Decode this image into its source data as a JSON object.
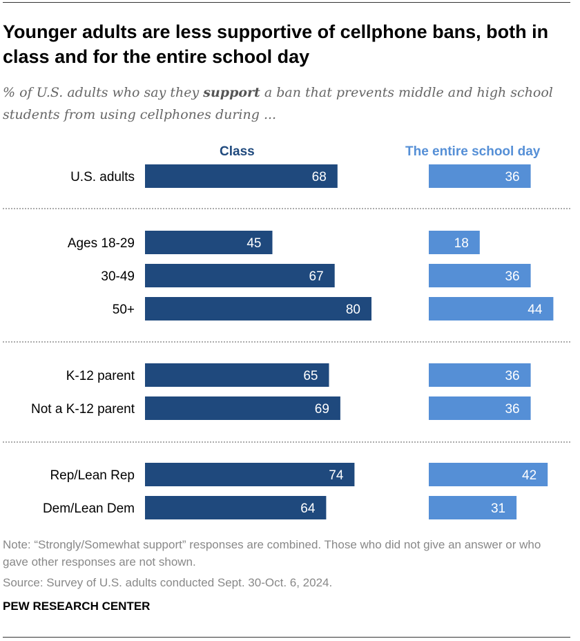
{
  "title": "Younger adults are less supportive of cellphone bans, both in class and for the entire school day",
  "subtitle_pre": "% of U.S. adults who say they ",
  "subtitle_bold": "support",
  "subtitle_post": " a ban that prevents middle and high school students from using cellphones during ...",
  "note": "Note: “Strongly/Somewhat support” responses are combined. Those who did not give an answer or who gave other responses are not shown.",
  "source": "Source: Survey of U.S. adults conducted Sept. 30-Oct. 6, 2024.",
  "brand": "PEW RESEARCH CENTER",
  "chart_data": {
    "type": "bar",
    "orientation": "horizontal",
    "categories": [
      "U.S. adults",
      "Ages 18-29",
      "30-49",
      "50+",
      "K-12 parent",
      "Not a K-12 parent",
      "Rep/Lean Rep",
      "Dem/Lean Dem"
    ],
    "groups": [
      [
        0
      ],
      [
        1,
        2,
        3
      ],
      [
        4,
        5
      ],
      [
        6,
        7
      ]
    ],
    "series": [
      {
        "name": "Class",
        "color": "#1f497d",
        "values": [
          68,
          45,
          67,
          80,
          65,
          69,
          74,
          64
        ]
      },
      {
        "name": "The entire school day",
        "color": "#558fd6",
        "values": [
          36,
          18,
          36,
          44,
          36,
          36,
          42,
          31
        ]
      }
    ],
    "xlim": [
      0,
      100
    ],
    "grid": false,
    "legend": "column headers"
  }
}
